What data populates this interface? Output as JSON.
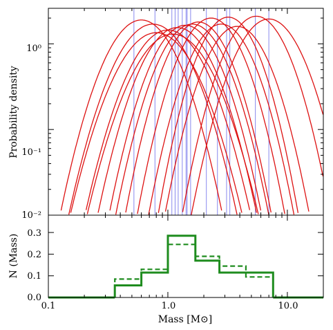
{
  "chart_data": [
    {
      "type": "line",
      "panel": "top",
      "ylabel": "Probability density",
      "x_scale": "log",
      "y_scale": "log",
      "xlim": [
        0.1,
        20
      ],
      "ylim": [
        0.01,
        2.6
      ],
      "y_tick_labels": [
        {
          "value": 0.01,
          "label": "10⁻²"
        },
        {
          "value": 0.1,
          "label": "10⁻¹"
        },
        {
          "value": 1,
          "label": "10⁰"
        }
      ],
      "line_color": "#dd1111",
      "vline_color": "#8888ee",
      "series": [
        {
          "peak_mass": 0.6,
          "peak_density": 1.9,
          "width": 0.21
        },
        {
          "peak_mass": 0.75,
          "peak_density": 1.7,
          "width": 0.22
        },
        {
          "peak_mass": 0.8,
          "peak_density": 1.35,
          "width": 0.23
        },
        {
          "peak_mass": 1.0,
          "peak_density": 1.45,
          "width": 0.22
        },
        {
          "peak_mass": 1.1,
          "peak_density": 1.3,
          "width": 0.23
        },
        {
          "peak_mass": 1.2,
          "peak_density": 1.55,
          "width": 0.21
        },
        {
          "peak_mass": 1.4,
          "peak_density": 1.65,
          "width": 0.2
        },
        {
          "peak_mass": 1.6,
          "peak_density": 1.7,
          "width": 0.2
        },
        {
          "peak_mass": 1.8,
          "peak_density": 1.8,
          "width": 0.19
        },
        {
          "peak_mass": 2.3,
          "peak_density": 2.0,
          "width": 0.19
        },
        {
          "peak_mass": 2.8,
          "peak_density": 1.7,
          "width": 0.19
        },
        {
          "peak_mass": 3.2,
          "peak_density": 2.05,
          "width": 0.18
        },
        {
          "peak_mass": 3.8,
          "peak_density": 1.6,
          "width": 0.19
        },
        {
          "peak_mass": 5.5,
          "peak_density": 2.1,
          "width": 0.19
        },
        {
          "peak_mass": 7.0,
          "peak_density": 1.95,
          "width": 0.2
        }
      ],
      "vlines": [
        0.52,
        0.78,
        1.08,
        1.15,
        1.22,
        1.32,
        1.42,
        1.45,
        1.55,
        2.1,
        2.6,
        3.1,
        3.3,
        5.4,
        7.0
      ]
    },
    {
      "type": "step",
      "panel": "bottom",
      "xlabel": "Mass [M⊙]",
      "ylabel": "N (Mass)",
      "x_scale": "log",
      "xlim": [
        0.1,
        20
      ],
      "ylim": [
        0,
        0.38
      ],
      "x_tick_labels": [
        {
          "value": 0.1,
          "label": "0.1"
        },
        {
          "value": 1.0,
          "label": "1.0"
        },
        {
          "value": 10.0,
          "label": "10.0"
        }
      ],
      "y_tick_labels": [
        {
          "value": 0,
          "label": "0.0"
        },
        {
          "value": 0.1,
          "label": "0.1"
        },
        {
          "value": 0.2,
          "label": "0.2"
        },
        {
          "value": 0.3,
          "label": "0.3"
        }
      ],
      "line_color": "#1e8c1e",
      "series": [
        {
          "style": "solid",
          "edges": [
            0.36,
            0.6,
            1.0,
            1.7,
            2.7,
            4.5,
            7.6
          ],
          "values": [
            0.056,
            0.115,
            0.285,
            0.17,
            0.115,
            0.115
          ]
        },
        {
          "style": "dashed",
          "edges": [
            0.36,
            0.6,
            1.0,
            1.7,
            2.7,
            4.5,
            7.6
          ],
          "values": [
            0.085,
            0.13,
            0.245,
            0.19,
            0.145,
            0.095
          ]
        }
      ]
    }
  ]
}
